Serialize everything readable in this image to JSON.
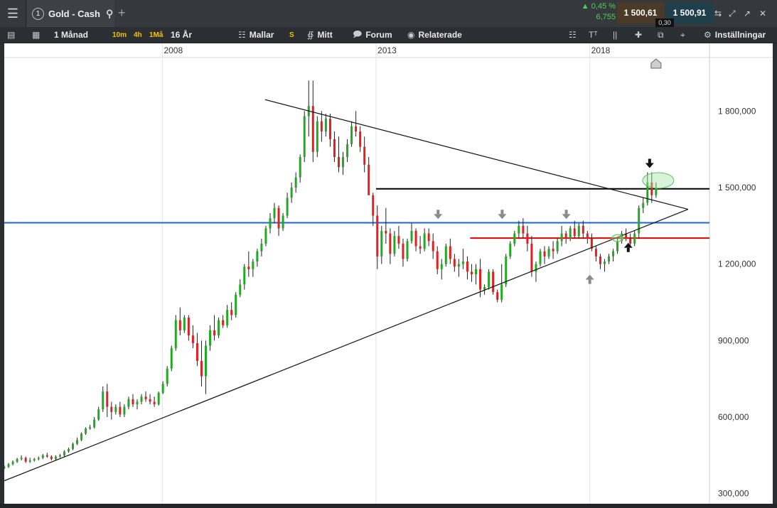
{
  "topbar": {
    "menu_icon": "hamburger-icon",
    "tab_number": "1",
    "tab_title": "Gold - Cash",
    "search_icon": "search-icon",
    "add_icon": "plus-icon",
    "change_pct": "▲ 0,45 %",
    "change_abs": "6,755",
    "bid": "1 500,61",
    "ask": "1 500,91",
    "spread": "0,30",
    "window_icons": [
      "resize-icon",
      "expand-icon",
      "popout-icon",
      "close-icon"
    ]
  },
  "toolbar": {
    "timeframe": "1 Månad",
    "quick": [
      "10m",
      "4h",
      "1Må"
    ],
    "range": "16 År",
    "templates": "Mallar",
    "s_badge": "S",
    "mine": "Mitt",
    "forum": "Forum",
    "related": "Relaterade",
    "settings": "Inställningar"
  },
  "colors": {
    "up": "#22a822",
    "down": "#e02020",
    "blue_line": "#1e64d6",
    "red_line": "#e00000",
    "black_line": "#000000",
    "highlight": "#a8e6a8"
  },
  "chart_data": {
    "type": "candlestick",
    "symbol": "Gold - Cash",
    "x_ticks": [
      "2008",
      "2013",
      "2018"
    ],
    "y_ticks": [
      "1 800,000",
      "1 500,000",
      "1 200,000",
      "900,000",
      "600,000",
      "300,000"
    ],
    "y_tick_values": [
      1800,
      1500,
      1200,
      900,
      600,
      300
    ],
    "ylim": [
      260,
      2010
    ],
    "xlim": [
      2004.3,
      2020.8
    ],
    "horizontal_lines": [
      {
        "color": "black",
        "value": 1495,
        "from": 2013.0
      },
      {
        "color": "blue",
        "value": 1362,
        "from": 2004.3
      },
      {
        "color": "red",
        "value": 1302,
        "from": 2015.2
      }
    ],
    "trendlines": [
      {
        "name": "upper",
        "x1": 2010.4,
        "y1": 1845,
        "x2": 2020.3,
        "y2": 1415
      },
      {
        "name": "lower",
        "x1": 2004.3,
        "y1": 350,
        "x2": 2020.3,
        "y2": 1415
      }
    ],
    "highlight_ellipse": {
      "x": 2019.6,
      "y": 1528
    },
    "small_ellipse": {
      "x": 2018.65,
      "y": 1302
    },
    "markers": [
      {
        "type": "down-arrow",
        "color": "gray",
        "x": 2014.45,
        "y": 1385
      },
      {
        "type": "down-arrow",
        "color": "gray",
        "x": 2015.95,
        "y": 1385
      },
      {
        "type": "down-arrow",
        "color": "gray",
        "x": 2017.45,
        "y": 1385
      },
      {
        "type": "up-arrow",
        "color": "gray",
        "x": 2018.0,
        "y": 1150
      },
      {
        "type": "up-arrow",
        "color": "black",
        "x": 2018.9,
        "y": 1275
      },
      {
        "type": "down-arrow",
        "color": "black",
        "x": 2019.4,
        "y": 1585
      },
      {
        "type": "up-triangle",
        "color": "gray",
        "x": 2019.55,
        "y": 1985
      }
    ],
    "series": [
      {
        "x": 2004.3,
        "values": [
          [
            400,
            410,
            395,
            405
          ],
          [
            405,
            420,
            400,
            415
          ],
          [
            415,
            430,
            410,
            425
          ],
          [
            425,
            440,
            420,
            435
          ],
          [
            435,
            450,
            430,
            440
          ],
          [
            440,
            445,
            420,
            425
          ],
          [
            425,
            440,
            420,
            430
          ],
          [
            430,
            440,
            425,
            435
          ],
          [
            435,
            445,
            430,
            440
          ],
          [
            440,
            455,
            435,
            450
          ],
          [
            450,
            460,
            440,
            445
          ],
          [
            445,
            450,
            430,
            435
          ],
          [
            435,
            450,
            430,
            445
          ],
          [
            445,
            455,
            440,
            450
          ],
          [
            450,
            470,
            445,
            465
          ],
          [
            465,
            480,
            460,
            475
          ],
          [
            475,
            500,
            470,
            495
          ],
          [
            495,
            520,
            490,
            510
          ],
          [
            510,
            540,
            505,
            535
          ],
          [
            535,
            560,
            530,
            555
          ],
          [
            555,
            570,
            550,
            560
          ],
          [
            560,
            600,
            555,
            590
          ],
          [
            590,
            640,
            585,
            630
          ],
          [
            630,
            720,
            620,
            700
          ],
          [
            700,
            730,
            600,
            640
          ],
          [
            640,
            660,
            590,
            620
          ],
          [
            620,
            650,
            610,
            640
          ],
          [
            640,
            660,
            600,
            610
          ],
          [
            610,
            650,
            600,
            640
          ],
          [
            640,
            680,
            630,
            670
          ],
          [
            670,
            690,
            640,
            650
          ],
          [
            650,
            670,
            630,
            660
          ],
          [
            660,
            690,
            650,
            680
          ],
          [
            680,
            700,
            660,
            670
          ],
          [
            670,
            690,
            650,
            660
          ],
          [
            660,
            680,
            640,
            650
          ],
          [
            650,
            700,
            645,
            695
          ],
          [
            695,
            740,
            690,
            730
          ],
          [
            730,
            800,
            720,
            790
          ],
          [
            790,
            880,
            780,
            870
          ],
          [
            870,
            1000,
            860,
            980
          ],
          [
            980,
            1030,
            920,
            940
          ],
          [
            940,
            1000,
            930,
            990
          ],
          [
            990,
            1000,
            900,
            920
          ],
          [
            920,
            960,
            870,
            890
          ],
          [
            890,
            930,
            800,
            820
          ],
          [
            820,
            900,
            720,
            760
          ],
          [
            760,
            900,
            690,
            880
          ],
          [
            880,
            960,
            860,
            940
          ],
          [
            940,
            1000,
            900,
            920
          ],
          [
            920,
            990,
            910,
            980
          ],
          [
            980,
            1000,
            950,
            960
          ],
          [
            960,
            1040,
            950,
            1020
          ],
          [
            1020,
            1050,
            980,
            1000
          ],
          [
            1000,
            1090,
            990,
            1080
          ],
          [
            1080,
            1140,
            1070,
            1120
          ],
          [
            1120,
            1200,
            1100,
            1190
          ],
          [
            1190,
            1250,
            1150,
            1180
          ],
          [
            1180,
            1220,
            1150,
            1210
          ],
          [
            1210,
            1260,
            1190,
            1250
          ],
          [
            1250,
            1300,
            1230,
            1280
          ],
          [
            1280,
            1350,
            1270,
            1340
          ],
          [
            1340,
            1400,
            1320,
            1380
          ],
          [
            1380,
            1440,
            1360,
            1420
          ],
          [
            1420,
            1430,
            1310,
            1340
          ],
          [
            1340,
            1400,
            1330,
            1390
          ],
          [
            1390,
            1480,
            1380,
            1460
          ],
          [
            1460,
            1520,
            1440,
            1500
          ],
          [
            1500,
            1560,
            1480,
            1540
          ],
          [
            1540,
            1630,
            1520,
            1620
          ],
          [
            1620,
            1800,
            1600,
            1780
          ],
          [
            1780,
            1920,
            1700,
            1820
          ],
          [
            1820,
            1920,
            1600,
            1640
          ],
          [
            1640,
            1780,
            1620,
            1760
          ],
          [
            1760,
            1800,
            1680,
            1720
          ],
          [
            1720,
            1790,
            1700,
            1770
          ],
          [
            1770,
            1790,
            1660,
            1690
          ],
          [
            1690,
            1720,
            1600,
            1620
          ],
          [
            1620,
            1700,
            1560,
            1580
          ],
          [
            1580,
            1640,
            1550,
            1620
          ],
          [
            1620,
            1690,
            1600,
            1670
          ],
          [
            1670,
            1760,
            1660,
            1740
          ],
          [
            1740,
            1800,
            1700,
            1720
          ],
          [
            1720,
            1740,
            1640,
            1660
          ],
          [
            1660,
            1700,
            1560,
            1590
          ],
          [
            1590,
            1620,
            1500,
            1470
          ],
          [
            1470,
            1480,
            1350,
            1390
          ],
          [
            1390,
            1430,
            1180,
            1230
          ],
          [
            1230,
            1350,
            1200,
            1330
          ],
          [
            1330,
            1420,
            1280,
            1320
          ],
          [
            1320,
            1340,
            1200,
            1240
          ],
          [
            1240,
            1330,
            1230,
            1310
          ],
          [
            1310,
            1350,
            1260,
            1280
          ],
          [
            1280,
            1300,
            1190,
            1220
          ],
          [
            1220,
            1300,
            1210,
            1290
          ],
          [
            1290,
            1360,
            1280,
            1330
          ],
          [
            1330,
            1340,
            1250,
            1270
          ],
          [
            1270,
            1310,
            1240,
            1260
          ],
          [
            1260,
            1340,
            1250,
            1320
          ],
          [
            1320,
            1340,
            1270,
            1290
          ],
          [
            1290,
            1320,
            1220,
            1250
          ],
          [
            1250,
            1270,
            1160,
            1180
          ],
          [
            1180,
            1220,
            1140,
            1200
          ],
          [
            1200,
            1280,
            1190,
            1270
          ],
          [
            1270,
            1300,
            1200,
            1220
          ],
          [
            1220,
            1240,
            1170,
            1190
          ],
          [
            1190,
            1220,
            1150,
            1200
          ],
          [
            1200,
            1260,
            1180,
            1210
          ],
          [
            1210,
            1230,
            1140,
            1170
          ],
          [
            1170,
            1200,
            1130,
            1160
          ],
          [
            1160,
            1200,
            1120,
            1180
          ],
          [
            1180,
            1220,
            1070,
            1100
          ],
          [
            1100,
            1120,
            1080,
            1110
          ],
          [
            1110,
            1180,
            1100,
            1170
          ],
          [
            1170,
            1180,
            1080,
            1090
          ],
          [
            1090,
            1100,
            1050,
            1060
          ],
          [
            1060,
            1200,
            1050,
            1120
          ],
          [
            1120,
            1240,
            1110,
            1230
          ],
          [
            1230,
            1290,
            1220,
            1280
          ],
          [
            1280,
            1330,
            1270,
            1320
          ],
          [
            1320,
            1370,
            1300,
            1350
          ],
          [
            1350,
            1380,
            1300,
            1320
          ],
          [
            1320,
            1350,
            1250,
            1280
          ],
          [
            1280,
            1310,
            1150,
            1170
          ],
          [
            1170,
            1210,
            1130,
            1200
          ],
          [
            1200,
            1260,
            1190,
            1250
          ],
          [
            1250,
            1270,
            1200,
            1230
          ],
          [
            1230,
            1270,
            1220,
            1260
          ],
          [
            1260,
            1290,
            1220,
            1250
          ],
          [
            1250,
            1300,
            1240,
            1290
          ],
          [
            1290,
            1350,
            1270,
            1320
          ],
          [
            1320,
            1330,
            1280,
            1300
          ],
          [
            1300,
            1350,
            1290,
            1340
          ],
          [
            1340,
            1370,
            1300,
            1310
          ],
          [
            1310,
            1360,
            1300,
            1350
          ],
          [
            1350,
            1370,
            1300,
            1320
          ],
          [
            1320,
            1330,
            1280,
            1300
          ],
          [
            1300,
            1320,
            1250,
            1260
          ],
          [
            1260,
            1270,
            1210,
            1230
          ],
          [
            1230,
            1240,
            1180,
            1200
          ],
          [
            1200,
            1220,
            1170,
            1210
          ],
          [
            1210,
            1240,
            1200,
            1230
          ],
          [
            1230,
            1260,
            1210,
            1250
          ],
          [
            1250,
            1300,
            1240,
            1290
          ],
          [
            1290,
            1330,
            1280,
            1320
          ],
          [
            1320,
            1340,
            1290,
            1300
          ],
          [
            1300,
            1320,
            1270,
            1280
          ],
          [
            1280,
            1330,
            1270,
            1320
          ],
          [
            1320,
            1430,
            1300,
            1420
          ],
          [
            1420,
            1460,
            1400,
            1440
          ],
          [
            1440,
            1560,
            1430,
            1520
          ],
          [
            1520,
            1560,
            1440,
            1470
          ],
          [
            1470,
            1520,
            1460,
            1500
          ]
        ]
      }
    ]
  }
}
